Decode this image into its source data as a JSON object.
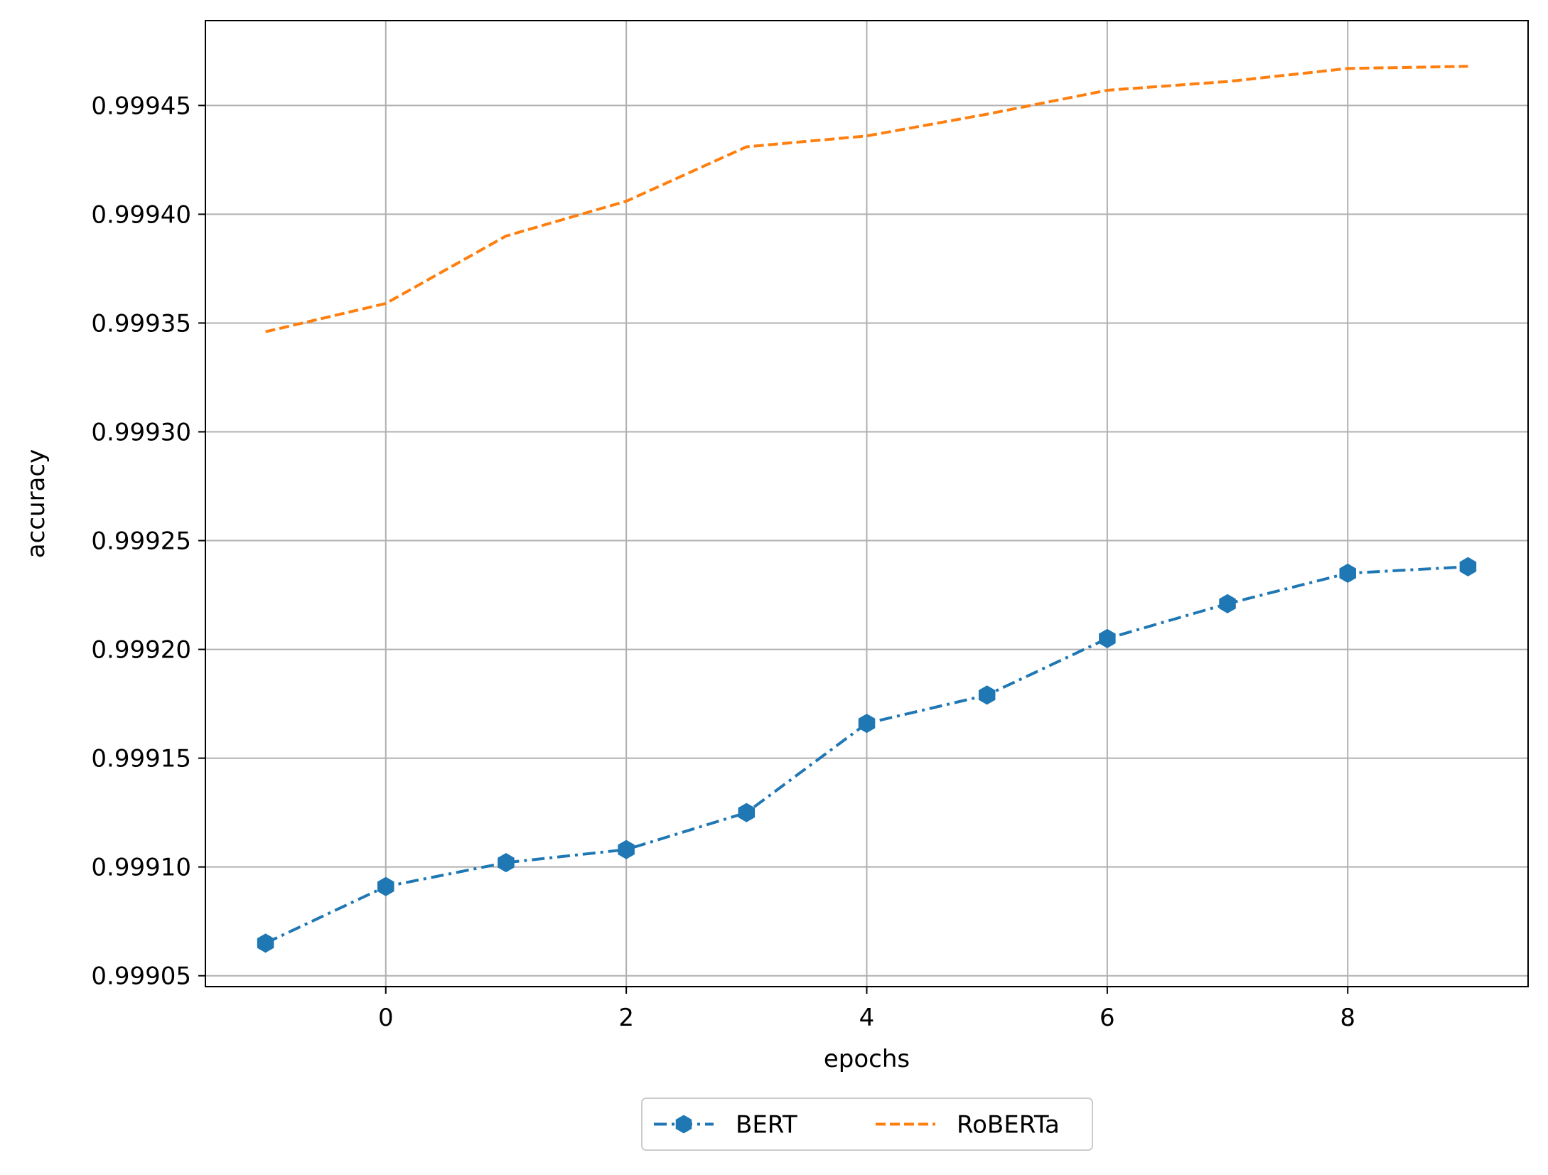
{
  "chart_data": {
    "type": "line",
    "title": "",
    "xlabel": "epochs",
    "ylabel": "accuracy",
    "xlim": [
      -1.5,
      9.5
    ],
    "ylim": [
      0.999045,
      0.999489
    ],
    "xticks": [
      0,
      2,
      4,
      6,
      8
    ],
    "yticks": [
      0.99905,
      0.9991,
      0.99915,
      0.9992,
      0.99925,
      0.9993,
      0.99935,
      0.9994,
      0.99945
    ],
    "ytick_labels": [
      "0.99905",
      "0.99910",
      "0.99915",
      "0.99920",
      "0.99925",
      "0.99930",
      "0.99935",
      "0.99940",
      "0.99945"
    ],
    "grid": true,
    "legend": {
      "placement": "bottom-center",
      "columns": 2
    },
    "x": [
      -1,
      0,
      1,
      2,
      3,
      4,
      5,
      6,
      7,
      8,
      9
    ],
    "series": [
      {
        "name": "BERT",
        "color": "#1f77b4",
        "linestyle": "dashdot",
        "marker": "hexagon",
        "values": [
          0.999065,
          0.999091,
          0.999102,
          0.999108,
          0.999125,
          0.999166,
          0.999179,
          0.999205,
          0.999221,
          0.999235,
          0.999238
        ]
      },
      {
        "name": "RoBERTa",
        "color": "#ff7f0e",
        "linestyle": "dashed",
        "marker": "none",
        "values": [
          0.999346,
          0.999359,
          0.99939,
          0.999406,
          0.999431,
          0.999436,
          0.999446,
          0.999457,
          0.999461,
          0.999467,
          0.999468
        ]
      }
    ]
  }
}
